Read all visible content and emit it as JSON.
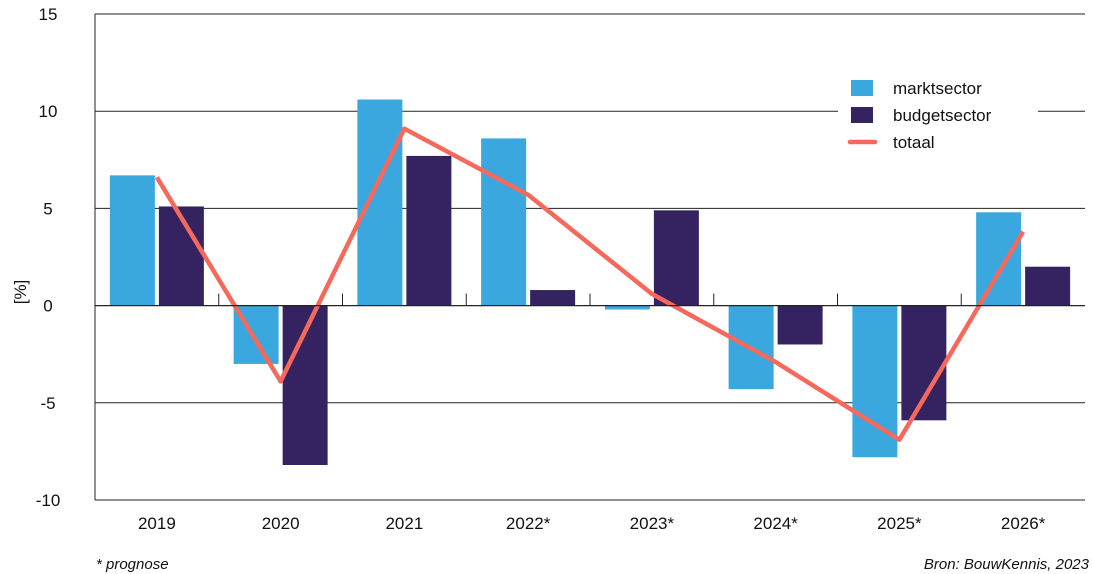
{
  "chart_data": {
    "type": "bar",
    "ylabel": "[%]",
    "ylim": [
      -10,
      15
    ],
    "yticks": [
      15,
      10,
      5,
      0,
      -5,
      -10
    ],
    "categories": [
      "2019",
      "2020",
      "2021",
      "2022*",
      "2023*",
      "2024*",
      "2025*",
      "2026*"
    ],
    "series": [
      {
        "name": "marktsector",
        "type": "bar",
        "color": "#3aa8de",
        "values": [
          6.7,
          -3.0,
          10.6,
          8.6,
          -0.2,
          -4.3,
          -7.8,
          4.8
        ]
      },
      {
        "name": "budgetsector",
        "type": "bar",
        "color": "#352361",
        "values": [
          5.1,
          -8.2,
          7.7,
          0.8,
          4.9,
          -2.0,
          -5.9,
          2.0
        ]
      },
      {
        "name": "totaal",
        "type": "line",
        "color": "#f4695b",
        "values": [
          6.6,
          -3.9,
          9.1,
          5.7,
          0.6,
          -2.9,
          -6.9,
          3.8
        ]
      }
    ],
    "legend_position": "top-right",
    "grid": true
  },
  "footnote": "* prognose",
  "source": "Bron: BouwKennis, 2023"
}
